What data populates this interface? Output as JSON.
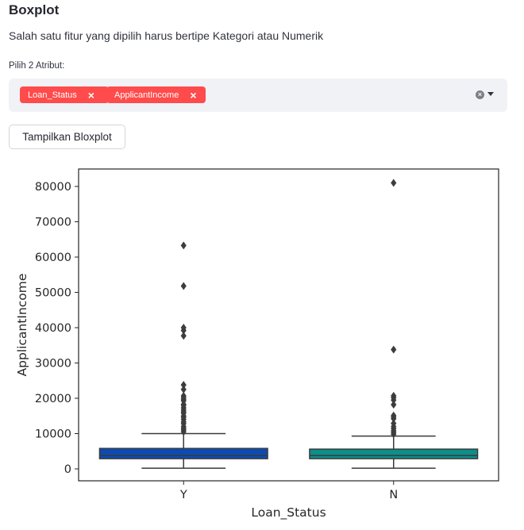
{
  "header": {
    "title": "Boxplot",
    "subtitle": "Salah satu fitur yang dipilih harus bertipe Kategori atau Numerik"
  },
  "form": {
    "attr_label": "Pilih 2 Atribut:",
    "selected": [
      {
        "label": "Loan_Status",
        "remove_icon": "close-icon"
      },
      {
        "label": "ApplicantIncome",
        "remove_icon": "close-icon"
      }
    ],
    "clear_icon": "clear-all-icon",
    "dropdown_icon": "chevron-down-icon",
    "button_label": "Tampilkan Bloxplot"
  },
  "colors": {
    "tag_bg": "#ff4b4b",
    "input_bg": "#f0f2f6",
    "box_Y": "#0d4bb3",
    "box_N": "#0c8e8a"
  },
  "chart_data": {
    "type": "boxplot",
    "xlabel": "Loan_Status",
    "ylabel": "ApplicantIncome",
    "ylim": [
      -3500,
      85000
    ],
    "yticks": [
      0,
      10000,
      20000,
      30000,
      40000,
      50000,
      60000,
      70000,
      80000
    ],
    "grid": false,
    "categories": [
      "Y",
      "N"
    ],
    "boxes": [
      {
        "name": "Y",
        "color": "#0d4bb3",
        "whisker_low": 200,
        "q1": 2900,
        "median": 3800,
        "q3": 5800,
        "whisker_high": 10000,
        "outliers": [
          10500,
          11000,
          11500,
          12000,
          12800,
          13300,
          14000,
          14600,
          15000,
          15800,
          16200,
          16700,
          17300,
          18000,
          18300,
          19300,
          19700,
          20200,
          20700,
          22500,
          23800,
          37700,
          39200,
          40000,
          51800,
          63300
        ]
      },
      {
        "name": "N",
        "color": "#0c8e8a",
        "whisker_low": 200,
        "q1": 2900,
        "median": 3800,
        "q3": 5600,
        "whisker_high": 9300,
        "outliers": [
          9800,
          10300,
          10800,
          11400,
          12000,
          12900,
          14200,
          14700,
          15100,
          18200,
          19500,
          20200,
          20700,
          33800,
          81000
        ]
      }
    ]
  }
}
